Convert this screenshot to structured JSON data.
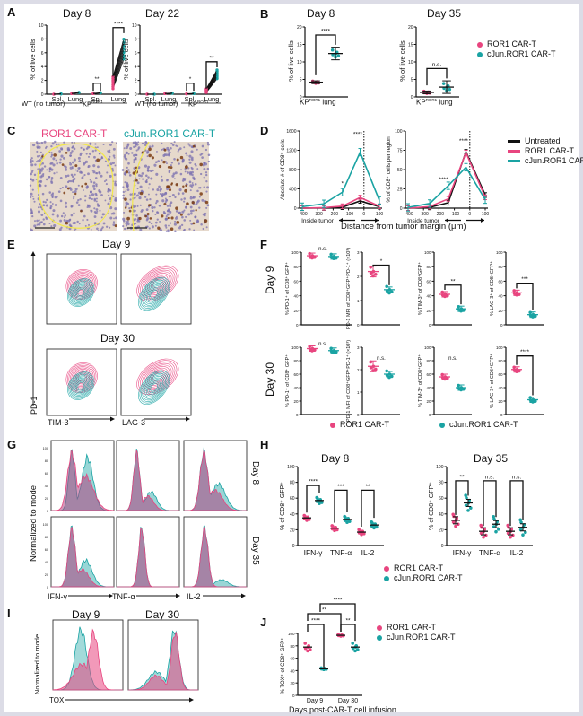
{
  "colors": {
    "ror1": "#e8457f",
    "cjun": "#1aa3a3",
    "untreated": "#111111",
    "histo_bg": "#e6d9cc",
    "nuclei": "#7a6fb0",
    "stain": "#7a3b12",
    "margin": "#f2e84a"
  },
  "legend": {
    "ror1": "ROR1 CAR-T",
    "cjun": "cJun.ROR1 CAR-T",
    "untreated": "Untreated"
  },
  "panels": {
    "A": {
      "letter": "A",
      "titles": [
        "Day 8",
        "Day 22"
      ],
      "ylabel": "% of live cells",
      "yticks": [
        "0",
        "2",
        "4",
        "6",
        "8",
        "10"
      ],
      "xticks": [
        "Spl.",
        "Lung",
        "Spl.",
        "Lung"
      ],
      "groups": [
        "WT (no tumor)",
        "KP"
      ],
      "group_sup": "ROR1",
      "sig_day8": [
        "**",
        "****"
      ],
      "sig_day22": [
        "*",
        "**"
      ]
    },
    "B": {
      "letter": "B",
      "titles": [
        "Day 8",
        "Day 35"
      ],
      "ylabel": "% of live cells",
      "yticks": [
        "0",
        "5",
        "10",
        "15",
        "20"
      ],
      "xlabel": "KP",
      "xlabel_sup": "ROR1",
      "xlabel_suffix": " lung",
      "sig": [
        "****",
        "n.s."
      ]
    },
    "C": {
      "letter": "C",
      "titles": [
        "ROR1 CAR-T",
        "cJun.ROR1 CAR-T"
      ]
    },
    "D": {
      "letter": "D",
      "ylabel_left": "Absolute # of CD8⁺ cells",
      "ylabel_right": "% of CD8⁺ cells per region",
      "yticks_left": [
        "0",
        "400",
        "800",
        "1200",
        "1600"
      ],
      "yticks_right": [
        "0",
        "25",
        "50",
        "75",
        "100"
      ],
      "xticks": [
        "−400",
        "−300",
        "−200",
        "−100",
        "0",
        "100"
      ],
      "inside_label": "Inside tumor",
      "xlabel": "Distance from tumor margin (μm)",
      "sig_left": [
        "*",
        "****"
      ],
      "sig_right": [
        "****",
        "****"
      ]
    },
    "E": {
      "letter": "E",
      "titles": [
        "Day 9",
        "Day 30"
      ],
      "ylabel": "PD-1",
      "xlabels": [
        "TIM-3",
        "LAG-3"
      ]
    },
    "F": {
      "letter": "F",
      "rows": [
        "Day 9",
        "Day 30"
      ],
      "ylabels": [
        "% PD-1⁺ of CD8⁺ GFP⁺",
        "PD-1 MFI of CD8⁺GFP⁺PD-1⁺ (×10³)",
        "% TIM-3⁺ of CD8⁺GFP⁺",
        "% LAG-3⁺ of CD8⁺GFP⁺"
      ],
      "yticks_pct": [
        "0",
        "20",
        "40",
        "60",
        "80",
        "100"
      ],
      "yticks_mfi": [
        "0",
        "1",
        "2",
        "3"
      ],
      "sig_day9": [
        "n.s.",
        "*",
        "**",
        "***"
      ],
      "sig_day30": [
        "n.s.",
        "n.s.",
        "n.s.",
        "****"
      ]
    },
    "G": {
      "letter": "G",
      "ylabel": "Normalized to mode",
      "rows": [
        "Day 8",
        "Day 35"
      ],
      "xlabels": [
        "IFN-γ",
        "TNF-α",
        "IL-2"
      ],
      "yticks": [
        "0",
        "20",
        "40",
        "60",
        "80",
        "100"
      ]
    },
    "H": {
      "letter": "H",
      "titles": [
        "Day 8",
        "Day 35"
      ],
      "ylabel": "% of CD8⁺ GFP⁺",
      "yticks": [
        "0",
        "20",
        "40",
        "60",
        "80",
        "100"
      ],
      "xticks": [
        "IFN-γ",
        "TNF-α",
        "IL-2"
      ],
      "sig_day8": [
        "****",
        "***",
        "**"
      ],
      "sig_day35": [
        "**",
        "n.s.",
        "n.s."
      ]
    },
    "I": {
      "letter": "I",
      "titles": [
        "Day 9",
        "Day 30"
      ],
      "ylabel": "Normalized to mode",
      "xlabel": "TOX"
    },
    "J": {
      "letter": "J",
      "ylabel": "% TOX⁺ of CD8⁺ GFP⁺",
      "yticks": [
        "0",
        "20",
        "40",
        "60",
        "80",
        "100"
      ],
      "xticks": [
        "Day 9",
        "Day 30"
      ],
      "xlabel": "Days post-CAR-T cell infusion",
      "sig": [
        "****",
        "**",
        "****",
        "**"
      ]
    }
  },
  "chart_data": [
    {
      "panel": "A-Day8",
      "type": "scatter",
      "title": "Day 8",
      "ylabel": "% of live cells",
      "ylim": [
        0,
        10
      ],
      "categories": [
        "WT Spl.",
        "WT Lung",
        "KP Spl.",
        "KP Lung"
      ],
      "series": [
        {
          "name": "ROR1 CAR-T",
          "values": [
            0.0,
            0.1,
            0.1,
            1.6
          ]
        },
        {
          "name": "cJun.ROR1 CAR-T",
          "values": [
            0.05,
            0.25,
            0.2,
            6.8
          ]
        }
      ],
      "annotations": [
        "** (KP Spl.)",
        "**** (KP Lung)"
      ]
    },
    {
      "panel": "A-Day22",
      "type": "scatter",
      "title": "Day 22",
      "ylabel": "% of live cells",
      "ylim": [
        0,
        10
      ],
      "categories": [
        "WT Spl.",
        "WT Lung",
        "KP Spl.",
        "KP Lung"
      ],
      "series": [
        {
          "name": "ROR1 CAR-T",
          "values": [
            0.0,
            0.1,
            0.05,
            0.5
          ]
        },
        {
          "name": "cJun.ROR1 CAR-T",
          "values": [
            0.0,
            0.15,
            0.1,
            3.0
          ]
        }
      ],
      "annotations": [
        "* (KP Spl.)",
        "** (KP Lung)"
      ]
    },
    {
      "panel": "B-Day8",
      "type": "scatter",
      "title": "Day 8",
      "ylabel": "% of live cells",
      "ylim": [
        0,
        20
      ],
      "categories": [
        "KP ROR1 lung"
      ],
      "series": [
        {
          "name": "ROR1 CAR-T",
          "values": [
            4.2
          ]
        },
        {
          "name": "cJun.ROR1 CAR-T",
          "values": [
            12.4
          ]
        }
      ],
      "annotations": [
        "****"
      ]
    },
    {
      "panel": "B-Day35",
      "type": "scatter",
      "title": "Day 35",
      "ylabel": "% of live cells",
      "ylim": [
        0,
        20
      ],
      "categories": [
        "KP ROR1 lung"
      ],
      "series": [
        {
          "name": "ROR1 CAR-T",
          "values": [
            1.3
          ]
        },
        {
          "name": "cJun.ROR1 CAR-T",
          "values": [
            2.8
          ]
        }
      ],
      "annotations": [
        "n.s."
      ]
    },
    {
      "panel": "D-left",
      "type": "line",
      "ylabel": "Absolute # of CD8⁺ cells",
      "xlabel": "Distance from tumor margin (μm)",
      "xlim": [
        -400,
        100
      ],
      "ylim": [
        0,
        1600
      ],
      "x": [
        -400,
        -260,
        -140,
        -25,
        100
      ],
      "series": [
        {
          "name": "Untreated",
          "values": [
            0,
            5,
            20,
            150,
            30
          ]
        },
        {
          "name": "ROR1 CAR-T",
          "values": [
            0,
            10,
            40,
            220,
            40
          ]
        },
        {
          "name": "cJun.ROR1 CAR-T",
          "values": [
            30,
            90,
            330,
            1160,
            160
          ]
        }
      ],
      "annotations": [
        "* (−140)",
        "**** (−25)"
      ]
    },
    {
      "panel": "D-right",
      "type": "line",
      "ylabel": "% of CD8⁺ cells per region",
      "xlabel": "Distance from tumor margin (μm)",
      "xlim": [
        -400,
        100
      ],
      "ylim": [
        0,
        100
      ],
      "x": [
        -400,
        -260,
        -140,
        -25,
        100
      ],
      "series": [
        {
          "name": "Untreated",
          "values": [
            0,
            1,
            7,
            73,
            17
          ]
        },
        {
          "name": "ROR1 CAR-T",
          "values": [
            0,
            2,
            12,
            72,
            14
          ]
        },
        {
          "name": "cJun.ROR1 CAR-T",
          "values": [
            1,
            6,
            29,
            53,
            11
          ]
        }
      ],
      "annotations": [
        "**** (−140)",
        "**** (−25)"
      ]
    },
    {
      "panel": "F-Day9",
      "type": "scatter",
      "categories": [
        "%PD-1+",
        "PD-1 MFI (×10³)",
        "%TIM-3+",
        "%LAG-3+"
      ],
      "series": [
        {
          "name": "ROR1 CAR-T",
          "values": [
            95,
            2.2,
            42,
            44
          ]
        },
        {
          "name": "cJun.ROR1 CAR-T",
          "values": [
            94,
            1.45,
            22,
            14
          ]
        }
      ],
      "annotations": [
        "n.s.",
        "*",
        "**",
        "***"
      ]
    },
    {
      "panel": "F-Day30",
      "type": "scatter",
      "categories": [
        "%PD-1+",
        "PD-1 MFI (×10³)",
        "%TIM-3+",
        "%LAG-3+"
      ],
      "series": [
        {
          "name": "ROR1 CAR-T",
          "values": [
            98,
            2.15,
            56,
            67
          ]
        },
        {
          "name": "cJun.ROR1 CAR-T",
          "values": [
            95,
            1.8,
            40,
            22
          ]
        }
      ],
      "annotations": [
        "n.s.",
        "n.s.",
        "n.s.",
        "****"
      ]
    },
    {
      "panel": "H-Day8",
      "type": "scatter",
      "title": "Day 8",
      "ylabel": "% of CD8⁺ GFP⁺",
      "ylim": [
        0,
        100
      ],
      "categories": [
        "IFN-γ",
        "TNF-α",
        "IL-2"
      ],
      "series": [
        {
          "name": "ROR1 CAR-T",
          "values": [
            35,
            22,
            17
          ]
        },
        {
          "name": "cJun.ROR1 CAR-T",
          "values": [
            57,
            33,
            26
          ]
        }
      ],
      "annotations": [
        "****",
        "***",
        "**"
      ]
    },
    {
      "panel": "H-Day35",
      "type": "scatter",
      "title": "Day 35",
      "ylabel": "% of CD8⁺ GFP⁺",
      "ylim": [
        0,
        100
      ],
      "categories": [
        "IFN-γ",
        "TNF-α",
        "IL-2"
      ],
      "series": [
        {
          "name": "ROR1 CAR-T",
          "values": [
            32,
            18,
            18
          ]
        },
        {
          "name": "cJun.ROR1 CAR-T",
          "values": [
            54,
            27,
            23
          ]
        }
      ],
      "annotations": [
        "**",
        "n.s.",
        "n.s."
      ]
    },
    {
      "panel": "J",
      "type": "scatter",
      "ylabel": "% TOX⁺ of CD8⁺ GFP⁺",
      "xlabel": "Days post-CAR-T cell infusion",
      "ylim": [
        0,
        100
      ],
      "categories": [
        "Day 9",
        "Day 30"
      ],
      "series": [
        {
          "name": "ROR1 CAR-T",
          "values": [
            78,
            97
          ]
        },
        {
          "name": "cJun.ROR1 CAR-T",
          "values": [
            43,
            78
          ]
        }
      ],
      "annotations": [
        "****",
        "**",
        "****",
        "**"
      ]
    }
  ]
}
